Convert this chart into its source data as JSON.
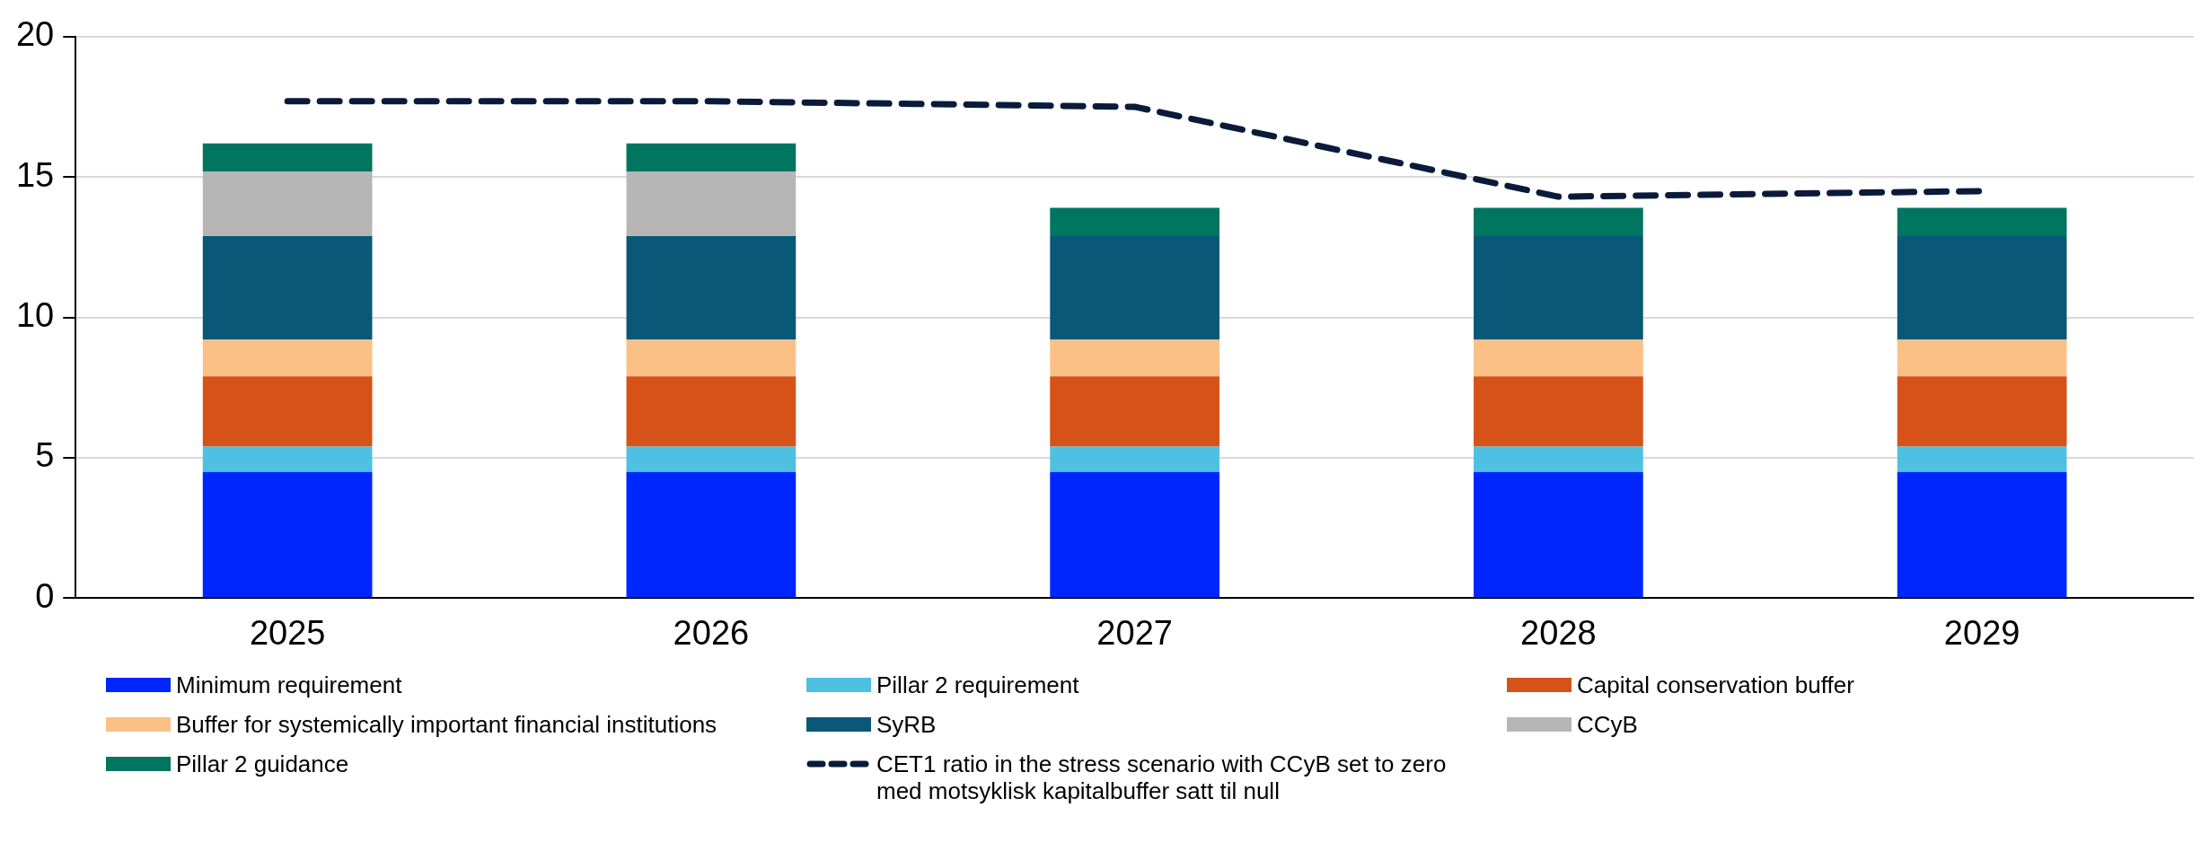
{
  "chart_data": {
    "type": "bar",
    "stacked": true,
    "categories": [
      "2025",
      "2026",
      "2027",
      "2028",
      "2029"
    ],
    "series": [
      {
        "name": "Minimum requirement",
        "color": "#0026ff",
        "values": [
          4.5,
          4.5,
          4.5,
          4.5,
          4.5
        ]
      },
      {
        "name": "Pillar 2 requirement",
        "color": "#4ec1e2",
        "values": [
          0.9,
          0.9,
          0.9,
          0.9,
          0.9
        ]
      },
      {
        "name": "Capital conservation buffer",
        "color": "#d65219",
        "values": [
          2.5,
          2.5,
          2.5,
          2.5,
          2.5
        ]
      },
      {
        "name": "Buffer for systemically important financial institutions",
        "color": "#fbc086",
        "values": [
          1.3,
          1.3,
          1.3,
          1.3,
          1.3
        ]
      },
      {
        "name": "SyRB",
        "color": "#0a5877",
        "values": [
          3.7,
          3.7,
          3.7,
          3.7,
          3.7
        ]
      },
      {
        "name": "CCyB",
        "color": "#b6b6b6",
        "values": [
          2.3,
          2.3,
          null,
          null,
          null
        ]
      },
      {
        "name": "Pillar 2 guidance",
        "color": "#007560",
        "values": [
          1.0,
          1.0,
          1.0,
          1.0,
          1.0
        ]
      },
      {
        "name": "CET1 ratio in the stress scenario with CCyB set to zero\nmed motsyklisk kapitalbuffer satt til null",
        "type": "line",
        "line_style": "dashed",
        "color": "#0a1a3a",
        "values": [
          17.7,
          17.7,
          17.5,
          14.3,
          14.5
        ]
      }
    ],
    "ylim": [
      0,
      20
    ],
    "yticks": [
      0,
      5,
      10,
      15,
      20
    ],
    "grid": "y",
    "legend": "bottom",
    "marker": "none"
  }
}
